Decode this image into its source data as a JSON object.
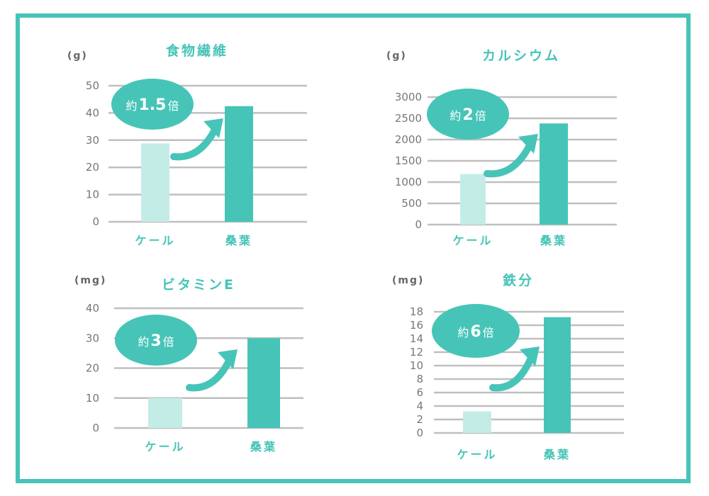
{
  "colors": {
    "frame": "#47c4b8",
    "accent": "#47c4b8",
    "bar_light": "#c3ece7",
    "bar_dark": "#47c4b8",
    "grid": "#bfbfbf",
    "axis_text": "#777777"
  },
  "chart_data": [
    {
      "type": "bar",
      "title": "食物繊維",
      "unit": "(g)",
      "categories": [
        "ケール",
        "桑葉"
      ],
      "values": [
        28.8,
        42.5
      ],
      "ylim": [
        0,
        50
      ],
      "yticks": [
        "0",
        "10",
        "20",
        "30",
        "40",
        "50"
      ],
      "badge": {
        "prefix": "約",
        "value": "1.5",
        "suffix": "倍"
      },
      "grid": true
    },
    {
      "type": "bar",
      "title": "カルシウム",
      "unit": "(g)",
      "categories": [
        "ケール",
        "桑葉"
      ],
      "values": [
        1190,
        2380
      ],
      "ylim": [
        0,
        3000
      ],
      "yticks": [
        "0",
        "500",
        "1000",
        "1500",
        "2000",
        "2500",
        "3000"
      ],
      "badge": {
        "prefix": "約",
        "value": "2",
        "suffix": "倍"
      },
      "grid": true
    },
    {
      "type": "bar",
      "title": "ビタミンE",
      "unit": "(mg)",
      "categories": [
        "ケール",
        "桑葉"
      ],
      "values": [
        10,
        30
      ],
      "ylim": [
        0,
        40
      ],
      "yticks": [
        "0",
        "10",
        "20",
        "30",
        "40"
      ],
      "badge": {
        "prefix": "約",
        "value": "3",
        "suffix": "倍"
      },
      "grid": true
    },
    {
      "type": "bar",
      "title": "鉄分",
      "unit": "(mg)",
      "categories": [
        "ケール",
        "桑葉"
      ],
      "values": [
        3.2,
        17.2
      ],
      "ylim": [
        0,
        18
      ],
      "yticks": [
        "0",
        "2",
        "4",
        "6",
        "8",
        "10",
        "12",
        "14",
        "16",
        "18"
      ],
      "badge": {
        "prefix": "約",
        "value": "6",
        "suffix": "倍"
      },
      "grid": true
    }
  ]
}
